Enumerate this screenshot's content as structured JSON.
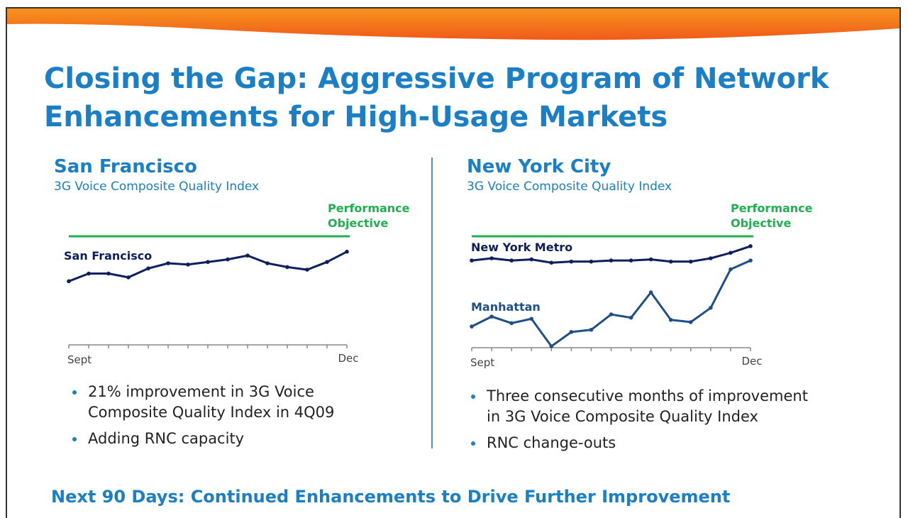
{
  "slide": {
    "title_line1": "Closing the Gap: Aggressive Program of Network",
    "title_line2": "Enhancements for High-Usage Markets",
    "footer": "Next 90 Days: Continued Enhancements to Drive Further Improvement"
  },
  "colors": {
    "title_blue": "#1a7fc4",
    "objective_green": "#1fb04f",
    "series_navy": "#0d1f5c",
    "manhattan_blue": "#1f4f8a",
    "orange": "#f47b20"
  },
  "panels": {
    "left": {
      "city": "San Francisco",
      "subtitle": "3G Voice Composite Quality Index",
      "objective_line1": "Performance",
      "objective_line2": "Objective",
      "bullets": [
        {
          "line1": "21% improvement in 3G Voice",
          "line2": "Composite Quality Index in 4Q09"
        },
        {
          "line1": "Adding RNC capacity",
          "line2": ""
        }
      ]
    },
    "right": {
      "city": "New York City",
      "subtitle": "3G Voice Composite Quality Index",
      "objective_line1": "Performance",
      "objective_line2": "Objective",
      "bullets": [
        {
          "line1": "Three consecutive months of improvement",
          "line2": "in 3G Voice Composite Quality Index"
        },
        {
          "line1": "RNC change-outs",
          "line2": ""
        }
      ]
    }
  },
  "chart_data": [
    {
      "type": "line",
      "title": "San Francisco",
      "subtitle": "3G Voice Composite Quality Index",
      "x_start_label": "Sept",
      "x_end_label": "Dec",
      "ylim": [
        0,
        100
      ],
      "objective": 100,
      "series": [
        {
          "name": "San Francisco",
          "values": [
            65,
            71,
            71,
            68,
            75,
            79,
            78,
            80,
            82,
            85,
            79,
            76,
            74,
            80,
            88
          ]
        }
      ]
    },
    {
      "type": "line",
      "title": "New York City",
      "subtitle": "3G Voice Composite Quality Index",
      "x_start_label": "Sept",
      "x_end_label": "Dec",
      "ylim": [
        0,
        100
      ],
      "objective": 100,
      "series": [
        {
          "name": "New York Metro",
          "values": [
            78,
            80,
            78,
            79,
            76,
            77,
            77,
            78,
            78,
            79,
            77,
            77,
            80,
            85,
            91
          ]
        },
        {
          "name": "Manhattan",
          "values": [
            18,
            27,
            21,
            25,
            0,
            13,
            15,
            29,
            26,
            49,
            24,
            22,
            35,
            70,
            78
          ]
        }
      ]
    }
  ]
}
